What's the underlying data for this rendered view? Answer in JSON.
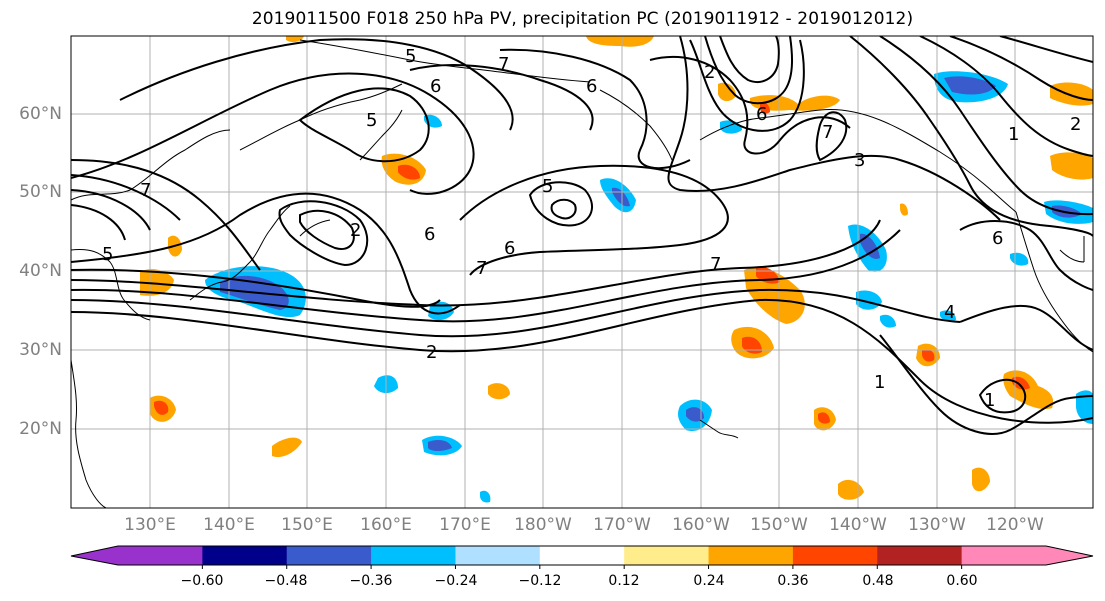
{
  "title": "2019011500 F018 250 hPa PV, precipitation PC (2019011912 - 2019012012)",
  "lat_labels": [
    "60°N",
    "50°N",
    "40°N",
    "30°N",
    "20°N"
  ],
  "lon_labels": [
    "130°E",
    "140°E",
    "150°E",
    "160°E",
    "170°E",
    "180°W",
    "170°W",
    "160°W",
    "150°W",
    "140°W",
    "130°W",
    "120°W"
  ],
  "colorbar": {
    "colors": [
      "#9932cc",
      "#00008b",
      "#3a5bcc",
      "#00bfff",
      "#b0e0ff",
      "#ffffff",
      "#ffec8b",
      "#ffa500",
      "#ff4500",
      "#b22222",
      "#ff88b8"
    ],
    "ticks": [
      "−0.60",
      "−0.48",
      "−0.36",
      "−0.24",
      "−0.12",
      "0.12",
      "0.24",
      "0.36",
      "0.48",
      "0.60"
    ]
  },
  "contour_labels": [
    "6",
    "5",
    "7",
    "6",
    "5",
    "7",
    "2",
    "6",
    "2",
    "5",
    "6",
    "7",
    "5",
    "2",
    "6",
    "7",
    "6",
    "4",
    "1",
    "1",
    "7",
    "3",
    "2",
    "1"
  ],
  "field_colors": {
    "neg_strong": "#3a5bcc",
    "neg_mid": "#00bfff",
    "neg_weak": "#b0e0ff",
    "pos_weak": "#ffec8b",
    "pos_mid": "#ffa500",
    "pos_strong": "#ff4500"
  }
}
